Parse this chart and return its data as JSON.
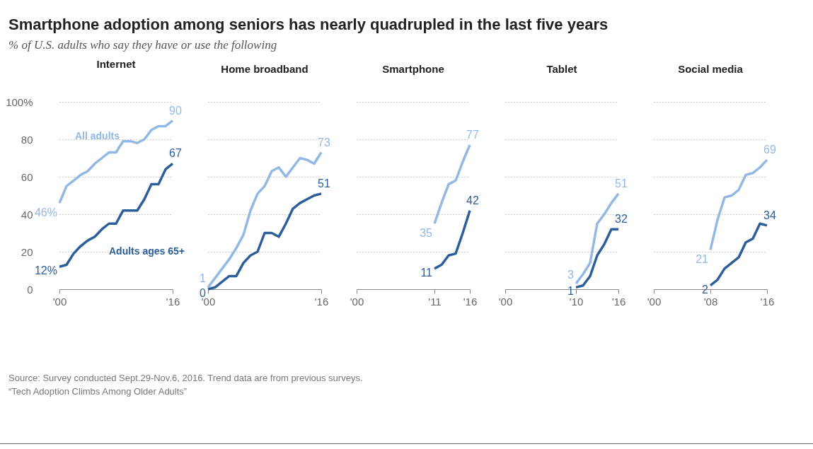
{
  "chart_data": [
    {
      "type": "other",
      "title": "Smartphone adoption among seniors has nearly quadrupled in the last five years",
      "subtitle": "% of U.S. adults who say they have or use the following",
      "annotations": [
        "Source: Survey conducted Sept.29-Nov.6, 2016. Trend data are from previous surveys.",
        "“Tech Adoption Climbs Among Older Adults”"
      ]
    },
    {
      "type": "line",
      "title": "Internet",
      "x": [
        2000,
        2001,
        2002,
        2003,
        2004,
        2005,
        2006,
        2007,
        2008,
        2009,
        2010,
        2011,
        2012,
        2013,
        2014,
        2015,
        2016
      ],
      "xlim": [
        2000,
        2016
      ],
      "xticks": [
        {
          "value": 2000,
          "label": "'00"
        },
        {
          "value": 2016,
          "label": "'16"
        }
      ],
      "ylim": [
        0,
        100
      ],
      "yticks": [
        0,
        20,
        40,
        60,
        80,
        {
          "value": 100,
          "label": "100%"
        }
      ],
      "grid": "y",
      "series": [
        {
          "name": "All adults",
          "color": "#92b8e4",
          "values": [
            46,
            55,
            58,
            61,
            63,
            67,
            70,
            73,
            73,
            79,
            79,
            78,
            80,
            85,
            87,
            87,
            90
          ],
          "value_labels": [
            "46%",
            null,
            null,
            null,
            null,
            null,
            null,
            null,
            null,
            null,
            null,
            null,
            null,
            null,
            null,
            null,
            "90"
          ]
        },
        {
          "name": "Adults ages 65+",
          "color": "#2c5f99",
          "values": [
            12,
            13,
            19,
            23,
            26,
            28,
            32,
            35,
            35,
            42,
            42,
            42,
            48,
            56,
            56,
            64,
            67
          ],
          "value_labels": [
            "12%",
            null,
            null,
            null,
            null,
            null,
            null,
            null,
            null,
            null,
            null,
            null,
            null,
            null,
            null,
            null,
            "67"
          ]
        }
      ]
    },
    {
      "type": "line",
      "title": "Home broadband",
      "x": [
        2000,
        2001,
        2002,
        2003,
        2004,
        2005,
        2006,
        2007,
        2008,
        2009,
        2010,
        2011,
        2012,
        2013,
        2014,
        2015,
        2016
      ],
      "xlim": [
        2000,
        2016
      ],
      "xticks": [
        {
          "value": 2000,
          "label": "'00"
        },
        {
          "value": 2016,
          "label": "'16"
        }
      ],
      "ylim": [
        0,
        100
      ],
      "yticks": [
        0,
        20,
        40,
        60,
        80,
        100
      ],
      "grid": "y",
      "tick_labels": "x",
      "series": [
        {
          "color": "#92b8e4",
          "values": [
            1,
            6,
            11,
            16,
            22,
            29,
            42,
            51,
            55,
            63,
            65,
            60,
            65,
            70,
            69,
            67,
            73
          ],
          "value_labels": [
            "1",
            null,
            null,
            null,
            null,
            null,
            null,
            null,
            null,
            null,
            null,
            null,
            null,
            null,
            null,
            null,
            "73"
          ]
        },
        {
          "color": "#2c5f99",
          "values": [
            0,
            1,
            4,
            7,
            7,
            14,
            18,
            20,
            30,
            30,
            28,
            35,
            43,
            46,
            48,
            50,
            51
          ],
          "value_labels": [
            "0",
            null,
            null,
            null,
            null,
            null,
            null,
            null,
            null,
            null,
            null,
            null,
            null,
            null,
            null,
            null,
            "51"
          ]
        }
      ]
    },
    {
      "type": "line",
      "title": "Smartphone",
      "x": [
        2011,
        2012,
        2013,
        2014,
        2015,
        2016
      ],
      "xlim": [
        2000,
        2016
      ],
      "xticks": [
        {
          "value": 2000,
          "label": "'00"
        },
        {
          "value": 2011,
          "label": "'11"
        },
        {
          "value": 2016,
          "label": "'16"
        }
      ],
      "ylim": [
        0,
        100
      ],
      "yticks": [
        0,
        20,
        40,
        60,
        80,
        100
      ],
      "grid": "y",
      "tick_labels": "x",
      "series": [
        {
          "color": "#92b8e4",
          "values": [
            35,
            46,
            56,
            58,
            68,
            77
          ],
          "value_labels": [
            "35",
            null,
            null,
            null,
            null,
            "77"
          ]
        },
        {
          "color": "#2c5f99",
          "values": [
            11,
            13,
            18,
            19,
            30,
            42
          ],
          "value_labels": [
            "11",
            null,
            null,
            null,
            null,
            "42"
          ]
        }
      ]
    },
    {
      "type": "line",
      "title": "Tablet",
      "x": [
        2010,
        2011,
        2012,
        2013,
        2014,
        2015,
        2016
      ],
      "xlim": [
        2000,
        2016
      ],
      "xticks": [
        {
          "value": 2000,
          "label": "'00"
        },
        {
          "value": 2010,
          "label": "'10"
        },
        {
          "value": 2016,
          "label": "'16"
        }
      ],
      "ylim": [
        0,
        100
      ],
      "yticks": [
        0,
        20,
        40,
        60,
        80,
        100
      ],
      "grid": "y",
      "tick_labels": "x",
      "series": [
        {
          "color": "#92b8e4",
          "values": [
            3,
            8,
            14,
            35,
            40,
            46,
            51
          ],
          "value_labels": [
            "3",
            null,
            null,
            null,
            null,
            null,
            "51"
          ]
        },
        {
          "color": "#2c5f99",
          "values": [
            1,
            2,
            7,
            18,
            24,
            32,
            32
          ],
          "value_labels": [
            "1",
            null,
            null,
            null,
            null,
            null,
            "32"
          ]
        }
      ]
    },
    {
      "type": "line",
      "title": "Social media",
      "x": [
        2008,
        2009,
        2010,
        2011,
        2012,
        2013,
        2014,
        2015,
        2016
      ],
      "xlim": [
        2000,
        2016
      ],
      "xticks": [
        {
          "value": 2000,
          "label": "'00"
        },
        {
          "value": 2008,
          "label": "'08"
        },
        {
          "value": 2016,
          "label": "'16"
        }
      ],
      "ylim": [
        0,
        100
      ],
      "yticks": [
        0,
        20,
        40,
        60,
        80,
        100
      ],
      "grid": "y",
      "tick_labels": "x",
      "series": [
        {
          "color": "#92b8e4",
          "values": [
            21,
            37,
            49,
            50,
            53,
            61,
            62,
            65,
            69
          ],
          "value_labels": [
            "21",
            null,
            null,
            null,
            null,
            null,
            null,
            null,
            "69"
          ]
        },
        {
          "color": "#2c5f99",
          "values": [
            2,
            5,
            11,
            14,
            17,
            25,
            27,
            35,
            34
          ],
          "value_labels": [
            "2",
            null,
            null,
            null,
            null,
            null,
            null,
            null,
            "34"
          ]
        }
      ]
    }
  ]
}
